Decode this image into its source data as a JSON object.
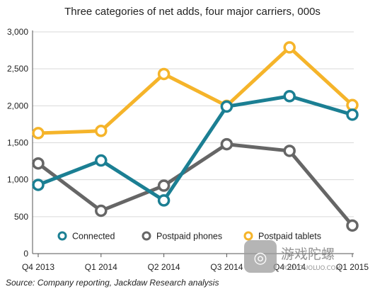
{
  "chart_data": {
    "type": "line",
    "title": "Three categories of net adds, four major carriers, 000s",
    "categories": [
      "Q4 2013",
      "Q1 2014",
      "Q2 2014",
      "Q3 2014",
      "Q4 2014",
      "Q1 2015"
    ],
    "y_ticks": [
      "0",
      "500",
      "1,000",
      "1,500",
      "2,000",
      "2,500",
      "3,000"
    ],
    "ylim": [
      0,
      3000
    ],
    "grid": true,
    "legend_position": "bottom",
    "series": [
      {
        "name": "Connected",
        "color": "#1b7f93",
        "values": [
          930,
          1260,
          720,
          1990,
          2130,
          1880
        ]
      },
      {
        "name": "Postpaid phones",
        "color": "#666666",
        "values": [
          1220,
          580,
          920,
          1480,
          1390,
          380
        ]
      },
      {
        "name": "Postpaid tablets",
        "color": "#f5b42a",
        "values": [
          1630,
          1660,
          2430,
          2000,
          2790,
          2010
        ]
      }
    ],
    "source": "Source: Company reporting, Jackdaw Research analysis"
  },
  "watermark": {
    "text_cn": "游戏陀螺",
    "text_en": "YOUXITUOLUO.COM"
  }
}
